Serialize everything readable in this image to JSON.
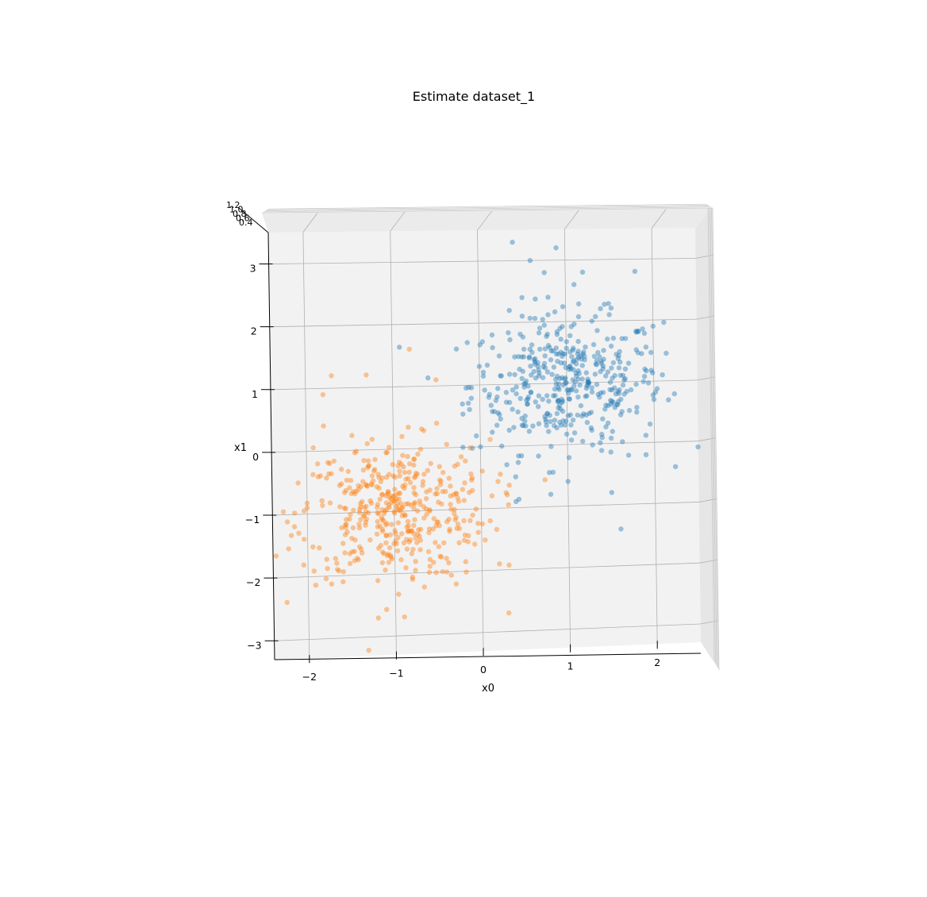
{
  "chart_data": {
    "type": "scatter",
    "projection": "3d",
    "view": "top-down",
    "title": "Estimate dataset_1",
    "xlabel": "x0",
    "ylabel": "x1",
    "xlim": [
      -2.4,
      2.5
    ],
    "ylim": [
      -3.3,
      3.5
    ],
    "xticks": [
      {
        "v": -2,
        "label": "−2"
      },
      {
        "v": -1,
        "label": "−1"
      },
      {
        "v": 0,
        "label": "0"
      },
      {
        "v": 1,
        "label": "1"
      },
      {
        "v": 2,
        "label": "2"
      }
    ],
    "yticks": [
      {
        "v": -3,
        "label": "−3"
      },
      {
        "v": -2,
        "label": "−2"
      },
      {
        "v": -1,
        "label": "−1"
      },
      {
        "v": 0,
        "label": "0"
      },
      {
        "v": 1,
        "label": "1"
      },
      {
        "v": 2,
        "label": "2"
      },
      {
        "v": 3,
        "label": "3"
      }
    ],
    "zticks": [
      "1.2",
      "1.0",
      "0.8",
      "0.6",
      "0.4"
    ],
    "grid": true,
    "series": [
      {
        "color": "#1f77b4",
        "center": [
          1.0,
          1.0
        ],
        "n": 400,
        "points": [
          [
            0.4,
            3.3
          ],
          [
            0.9,
            3.2
          ],
          [
            0.6,
            3.0
          ],
          [
            1.2,
            2.8
          ],
          [
            1.8,
            2.8
          ],
          [
            1.1,
            2.6
          ],
          [
            0.5,
            2.4
          ],
          [
            0.8,
            2.4
          ],
          [
            1.4,
            2.2
          ],
          [
            1.5,
            2.1
          ],
          [
            0.5,
            2.1
          ],
          [
            2.0,
            1.9
          ],
          [
            1.9,
            1.2
          ],
          [
            2.1,
            1.1
          ],
          [
            2.0,
            0.7
          ],
          [
            1.8,
            0.5
          ],
          [
            1.9,
            -0.2
          ],
          [
            1.5,
            -0.8
          ],
          [
            1.7,
            -0.2
          ],
          [
            1.0,
            -0.6
          ],
          [
            0.8,
            -0.8
          ],
          [
            0.4,
            -0.9
          ],
          [
            0.4,
            -0.5
          ],
          [
            0.3,
            -0.3
          ],
          [
            0.0,
            0.0
          ],
          [
            -0.2,
            0.7
          ],
          [
            -0.2,
            0.0
          ],
          [
            0.0,
            1.3
          ],
          [
            0.2,
            0.8
          ],
          [
            1.6,
            -1.4
          ],
          [
            1.4,
            0.1
          ],
          [
            1.2,
            1.5
          ],
          [
            1.3,
            2.0
          ],
          [
            0.7,
            1.9
          ],
          [
            0.9,
            0.6
          ],
          [
            1.5,
            0.7
          ]
        ]
      },
      {
        "color": "#ff7f0e",
        "center": [
          -1.0,
          -1.0
        ],
        "n": 400,
        "points": [
          [
            -0.8,
            1.6
          ],
          [
            -1.7,
            1.2
          ],
          [
            -1.3,
            1.2
          ],
          [
            -0.5,
            1.1
          ],
          [
            -1.8,
            0.9
          ],
          [
            -1.8,
            0.4
          ],
          [
            -2.1,
            -0.5
          ],
          [
            -2.1,
            -1.3
          ],
          [
            -2.0,
            -0.9
          ],
          [
            -1.6,
            -2.1
          ],
          [
            -1.2,
            -2.1
          ],
          [
            -1.2,
            -2.7
          ],
          [
            -0.9,
            -2.7
          ],
          [
            -0.8,
            -2.1
          ],
          [
            -0.6,
            -1.9
          ],
          [
            -0.3,
            -2.2
          ],
          [
            -0.2,
            -1.5
          ],
          [
            -0.1,
            -1.1
          ],
          [
            -0.1,
            -0.7
          ],
          [
            -0.3,
            -0.3
          ],
          [
            -0.1,
            -0.5
          ],
          [
            0.1,
            -1.2
          ],
          [
            0.2,
            -1.9
          ],
          [
            0.3,
            -2.7
          ],
          [
            -0.5,
            0.4
          ],
          [
            -0.9,
            0.2
          ],
          [
            -1.3,
            0.1
          ],
          [
            -1.6,
            -0.3
          ],
          [
            -1.4,
            -1.0
          ],
          [
            -1.1,
            -1.5
          ],
          [
            -0.6,
            -1.3
          ],
          [
            -0.9,
            -0.6
          ],
          [
            -1.0,
            -1.0
          ],
          [
            -0.7,
            -0.9
          ]
        ]
      }
    ]
  }
}
